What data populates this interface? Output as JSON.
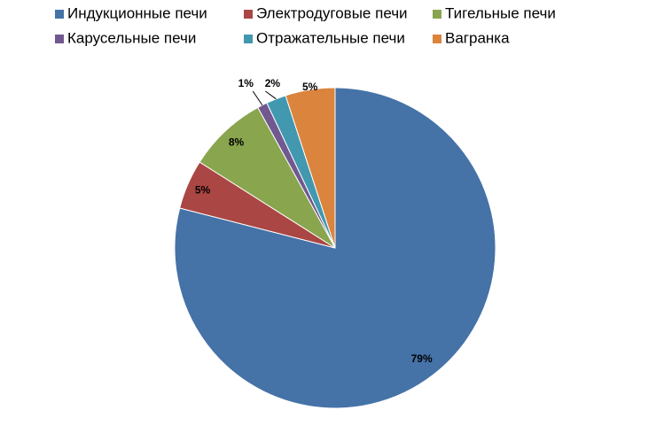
{
  "chart_data": {
    "type": "pie",
    "categories": [
      "Индукционные печи",
      "Электродуговые печи",
      "Тигельные печи",
      "Карусельные печи",
      "Отражательные печи",
      "Вагранка"
    ],
    "values": [
      79,
      5,
      8,
      1,
      2,
      5
    ],
    "value_labels": [
      "79%",
      "5%",
      "8%",
      "1%",
      "2%",
      "5%"
    ],
    "colors": [
      "#4572a7",
      "#aa4643",
      "#89a54e",
      "#71588f",
      "#4198af",
      "#db843d"
    ],
    "legend": "top"
  }
}
